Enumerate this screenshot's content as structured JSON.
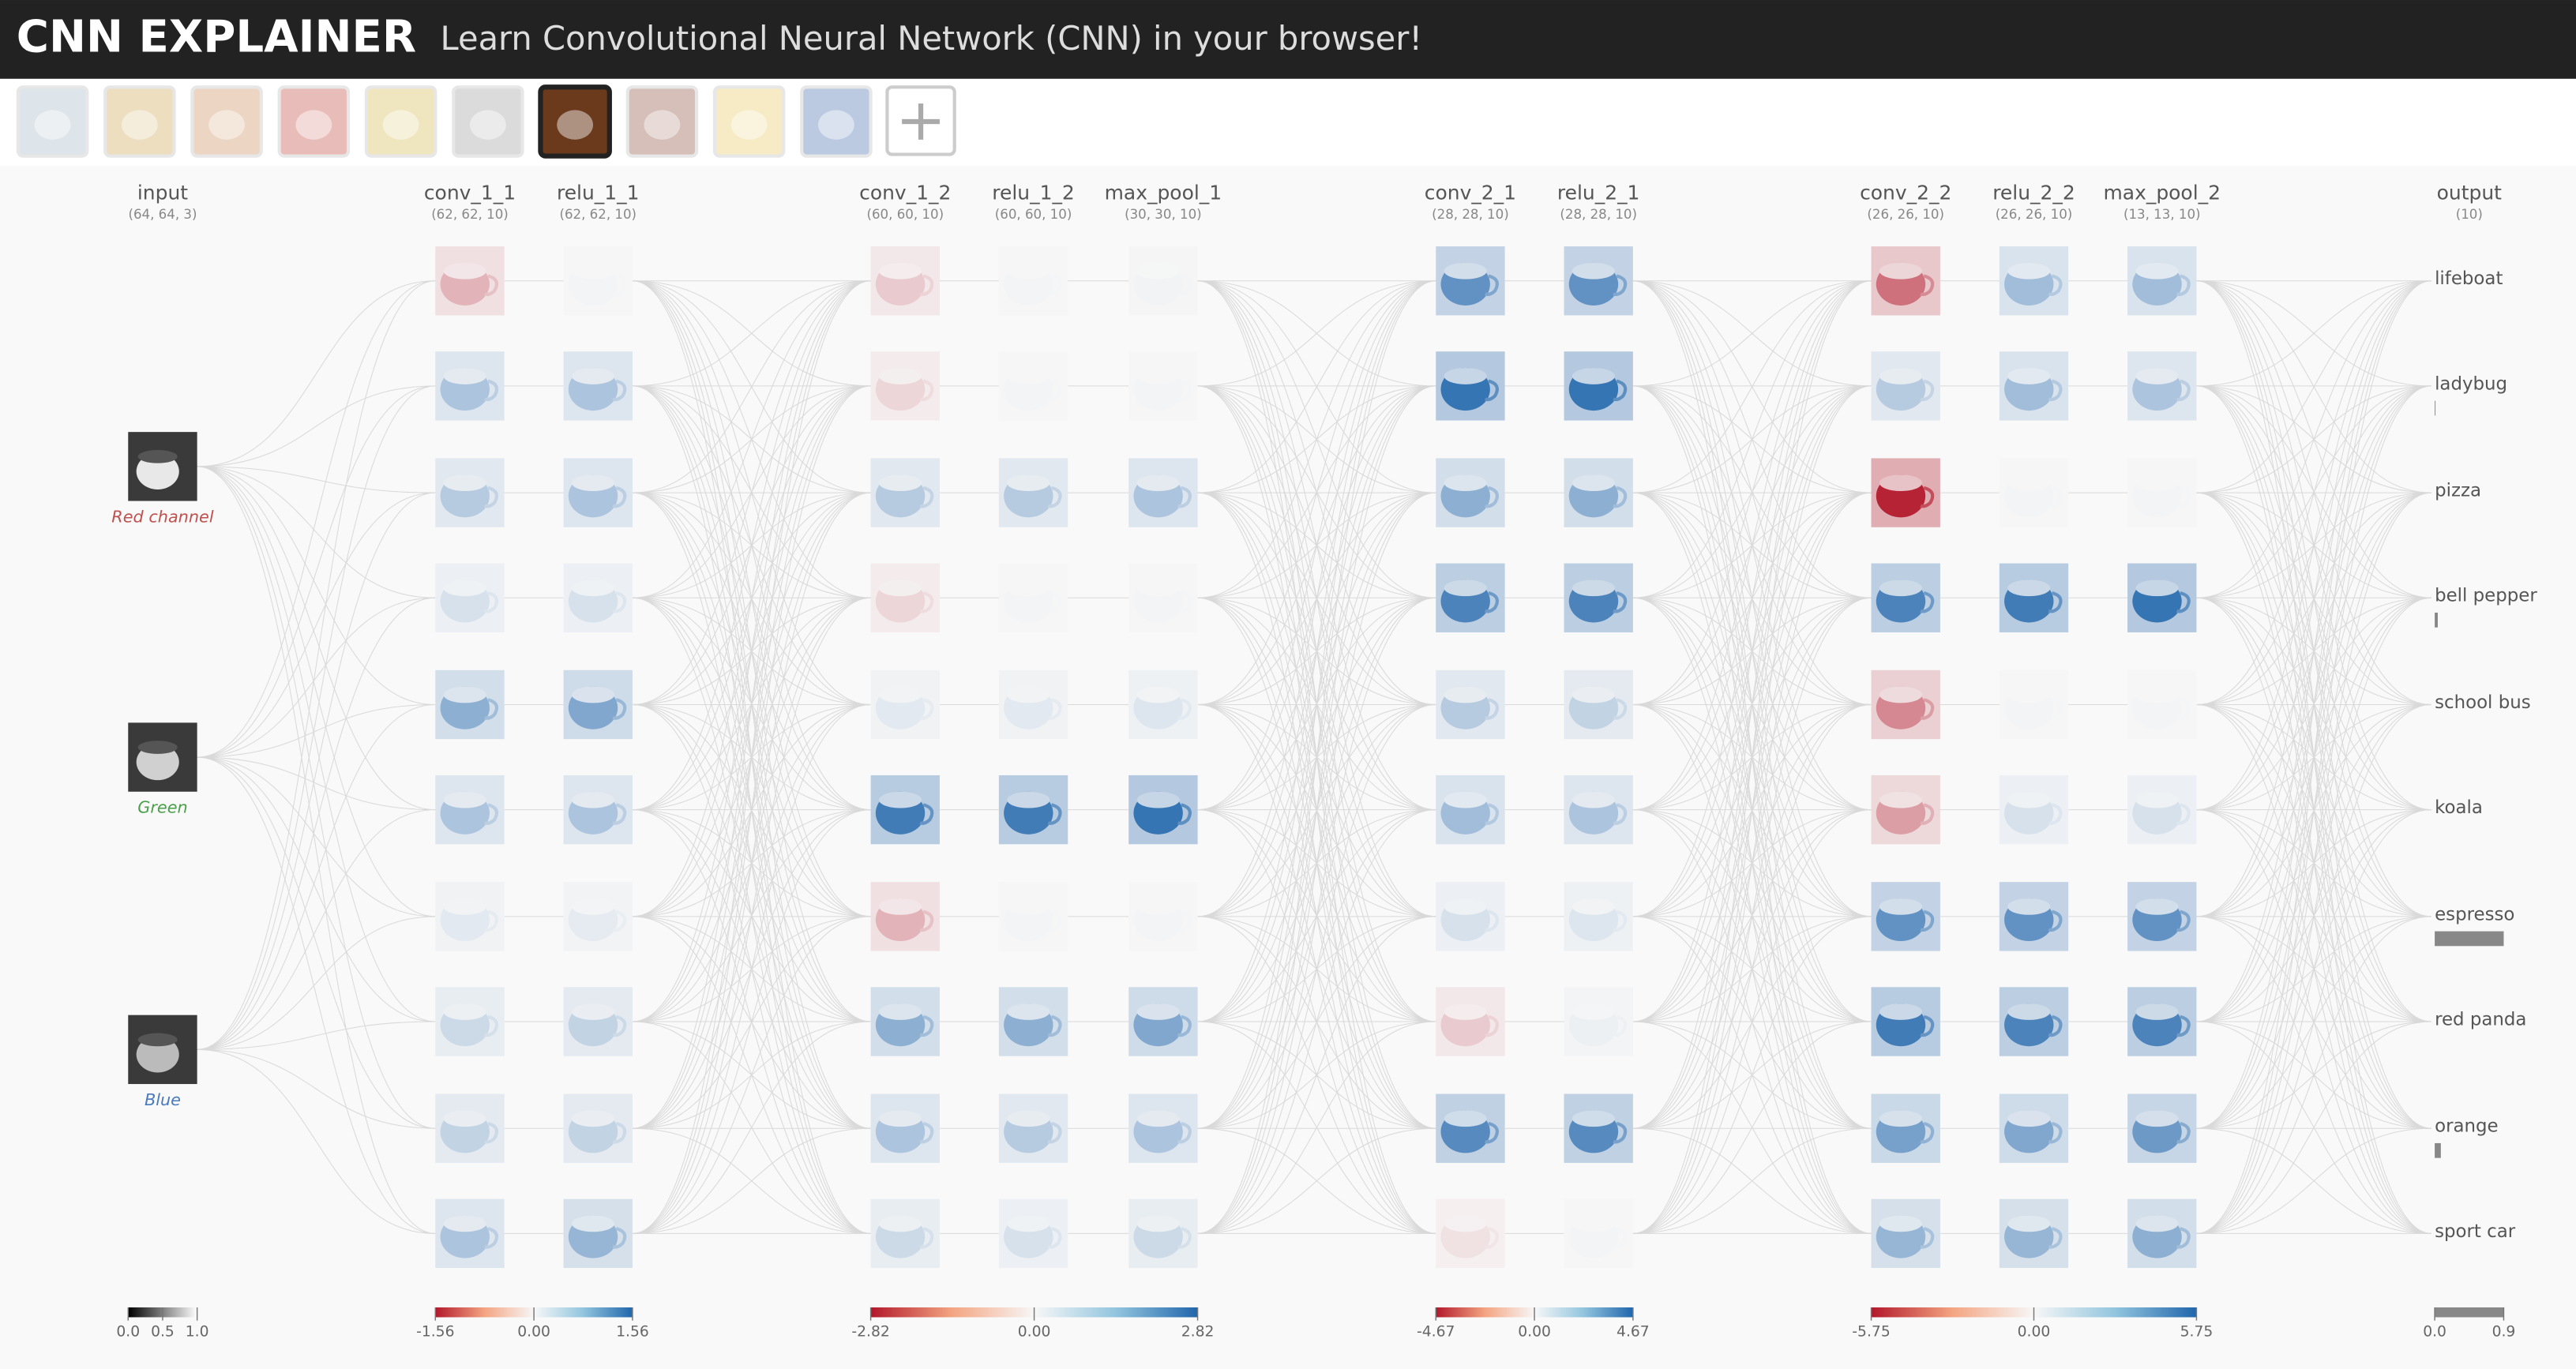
{
  "header": {
    "title": "CNN EXPLAINER",
    "subtitle": "Learn Convolutional Neural Network (CNN) in your browser!"
  },
  "input": {
    "name": "input",
    "shape": "(64, 64, 3)",
    "channels": [
      "Red channel",
      "Green",
      "Blue"
    ],
    "scale_ticks": [
      {
        "value": 0,
        "label": "0.0"
      },
      0.5,
      {
        "value": 1,
        "label": "1.0"
      }
    ]
  },
  "layers": [
    {
      "name": "conv_1_1",
      "shape": "(62, 62, 10)"
    },
    {
      "name": "relu_1_1",
      "shape": "(62, 62, 10)"
    },
    {
      "name": "conv_1_2",
      "shape": "(60, 60, 10)"
    },
    {
      "name": "relu_1_2",
      "shape": "(60, 60, 10)"
    },
    {
      "name": "max_pool_1",
      "shape": "(30, 30, 10)"
    },
    {
      "name": "conv_2_1",
      "shape": "(28, 28, 10)"
    },
    {
      "name": "relu_2_1",
      "shape": "(28, 28, 10)"
    },
    {
      "name": "conv_2_2",
      "shape": "(26, 26, 10)"
    },
    {
      "name": "relu_2_2",
      "shape": "(26, 26, 10)"
    },
    {
      "name": "max_pool_2",
      "shape": "(13, 13, 10)"
    }
  ],
  "color_scales": [
    {
      "ticks": [
        -1.56,
        {
          "value": 0,
          "label": "0.00"
        },
        1.56
      ]
    },
    {
      "ticks": [
        -2.82,
        {
          "value": 0,
          "label": "0.00"
        },
        2.82
      ]
    },
    {
      "ticks": [
        -4.67,
        {
          "value": 0,
          "label": "0.00"
        },
        4.67
      ]
    },
    {
      "ticks": [
        -5.75,
        {
          "value": 0,
          "label": "0.00"
        },
        5.75
      ]
    }
  ],
  "output": {
    "name": "output",
    "shape": "(10)",
    "classes": [
      "lifeboat",
      "ladybug",
      "pizza",
      "bell pepper",
      "school bus",
      "koala",
      "espresso",
      "red panda",
      "orange",
      "sport car"
    ],
    "probabilities": [
      0,
      0.01,
      0,
      0.04,
      0,
      0,
      0.9,
      0,
      0.08,
      0
    ],
    "scale_ticks": [
      {
        "value": 0,
        "label": "0.0"
      },
      0.9
    ]
  }
}
